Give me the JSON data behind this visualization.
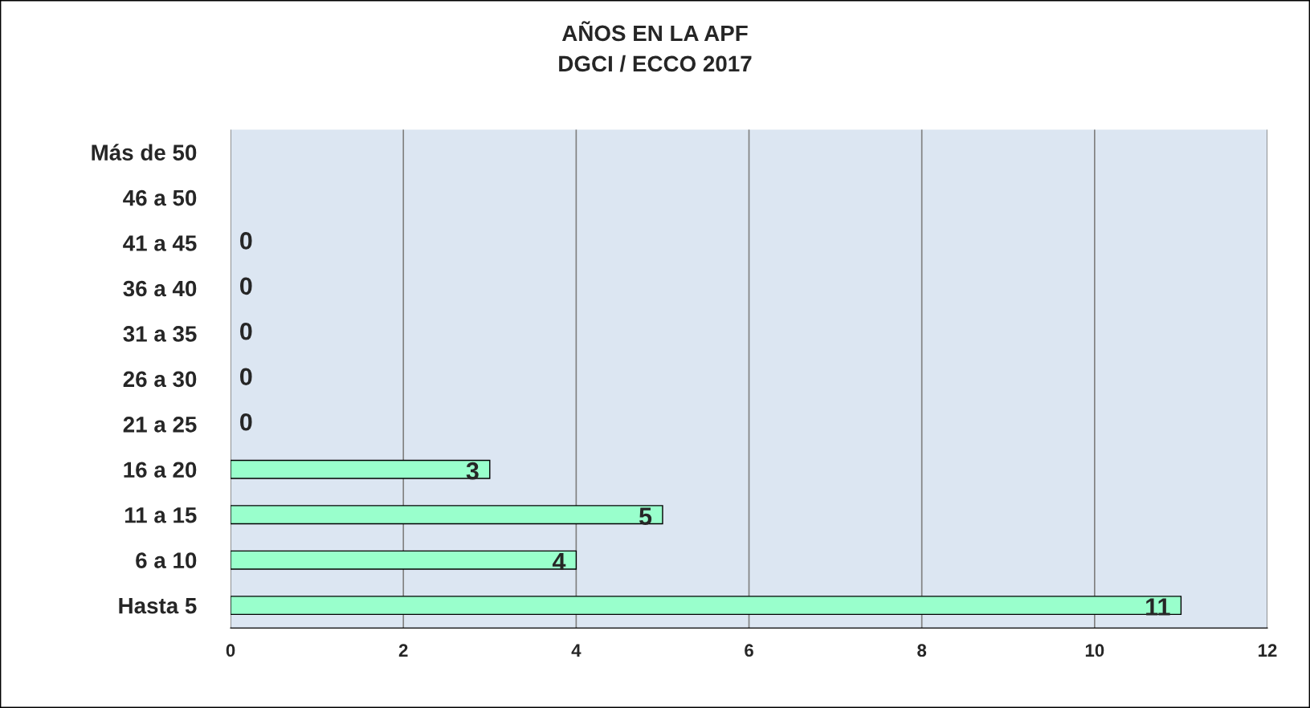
{
  "chart_data": {
    "type": "bar",
    "orientation": "horizontal",
    "title": "AÑOS EN LA APF\nDGCI / ECCO 2017",
    "categories": [
      "Más de 50",
      "46 a 50",
      "41 a 45",
      "36 a 40",
      "31 a 35",
      "26 a 30",
      "21 a 25",
      "16 a 20",
      "11 a 15",
      "6 a 10",
      "Hasta 5"
    ],
    "values": [
      0,
      0,
      0,
      0,
      0,
      0,
      0,
      3,
      5,
      4,
      11
    ],
    "value_labels": [
      null,
      null,
      "0",
      "0",
      "0",
      "0",
      "0",
      "3",
      "5",
      "4",
      "11"
    ],
    "color": "#99ffcc",
    "xlim": [
      0,
      12
    ],
    "xticks": [
      0,
      2,
      4,
      6,
      8,
      10,
      12
    ],
    "grid": "x"
  }
}
